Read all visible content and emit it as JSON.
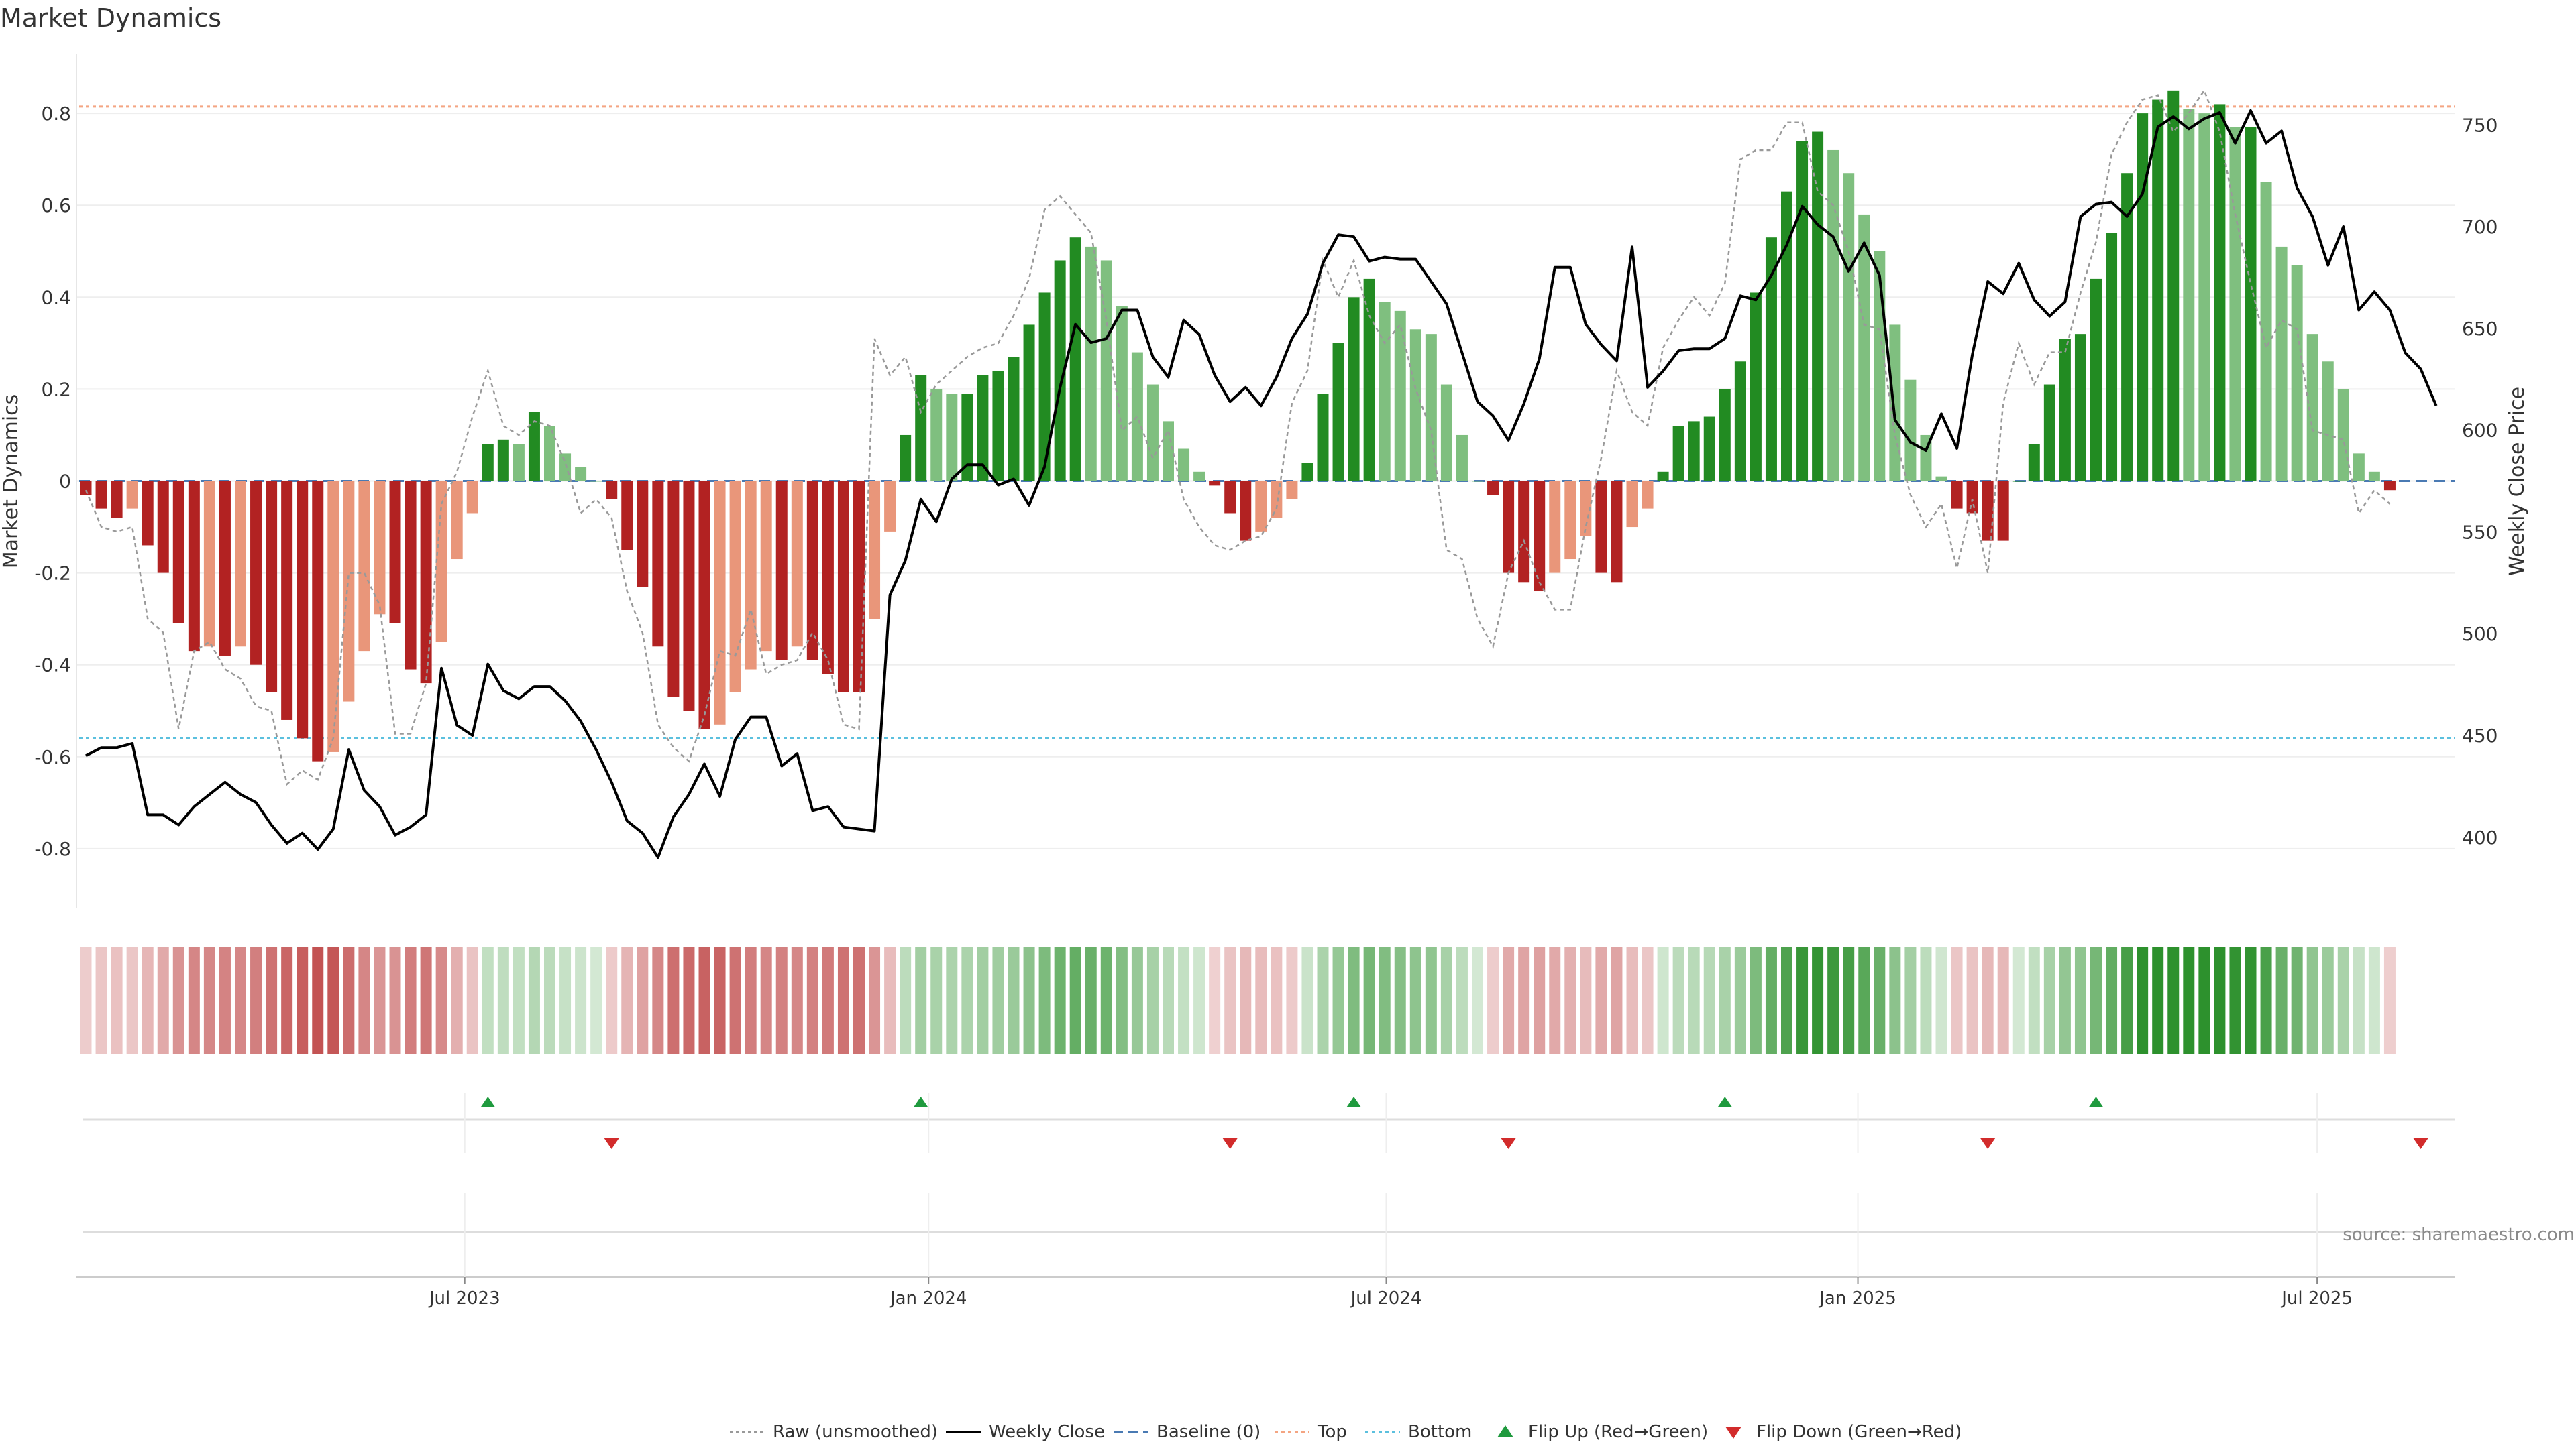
{
  "chart_data": {
    "type": "bar",
    "title": "Market Dynamics",
    "ylabel_left": "Market Dynamics",
    "ylabel_right": "Weekly Close Price",
    "ylim_left": [
      -0.93,
      0.93
    ],
    "ylim_right": [
      365,
      785
    ],
    "yticks_left": [
      "0.8",
      "0.6",
      "0.4",
      "0.2",
      "0",
      "-0.2",
      "-0.4",
      "-0.6",
      "-0.8"
    ],
    "yticks_left_values": [
      0.8,
      0.6,
      0.4,
      0.2,
      0,
      -0.2,
      -0.4,
      -0.6,
      -0.8
    ],
    "yticks_right": [
      "750",
      "700",
      "650",
      "600",
      "550",
      "500",
      "450",
      "400"
    ],
    "yticks_right_values": [
      750,
      700,
      650,
      600,
      550,
      500,
      450,
      400
    ],
    "xticks": [
      "Jul 2023",
      "Jan 2024",
      "Jul 2024",
      "Jan 2025",
      "Jul 2025"
    ],
    "xticks_index": [
      24.5,
      54.5,
      84.1,
      114.6,
      144.3
    ],
    "top_line": 0.815,
    "bottom_line": -0.56,
    "source": "source: sharemaestro.com",
    "legend": [
      "Raw (unsmoothed)",
      "Weekly Close",
      "Baseline (0)",
      "Top",
      "Bottom",
      "Flip Up (Red→Green)",
      "Flip Down (Green→Red)"
    ],
    "colors": {
      "strong_up": "#228b22",
      "weak_up": "#7fbf7f",
      "strong_down": "#b22222",
      "weak_down": "#e9967a",
      "baseline": "#4a7ab3",
      "top": "#f4a582",
      "bottom": "#5bc0de",
      "raw": "#999999",
      "close": "#000000",
      "flip_up": "#1f9a3e",
      "flip_down": "#d22b2b"
    },
    "series": [
      {
        "name": "Market Dynamics",
        "values": [
          -0.03,
          -0.06,
          -0.08,
          -0.06,
          -0.14,
          -0.2,
          -0.31,
          -0.37,
          -0.36,
          -0.38,
          -0.36,
          -0.4,
          -0.46,
          -0.52,
          -0.56,
          -0.61,
          -0.59,
          -0.48,
          -0.37,
          -0.29,
          -0.31,
          -0.41,
          -0.44,
          -0.35,
          -0.17,
          -0.07,
          0.08,
          0.09,
          0.08,
          0.15,
          0.12,
          0.06,
          0.03,
          0.0,
          -0.04,
          -0.15,
          -0.23,
          -0.36,
          -0.47,
          -0.5,
          -0.54,
          -0.53,
          -0.46,
          -0.41,
          -0.37,
          -0.39,
          -0.36,
          -0.39,
          -0.42,
          -0.46,
          -0.46,
          -0.3,
          -0.11,
          0.1,
          0.23,
          0.2,
          0.19,
          0.19,
          0.23,
          0.24,
          0.27,
          0.34,
          0.41,
          0.48,
          0.53,
          0.51,
          0.48,
          0.38,
          0.28,
          0.21,
          0.13,
          0.07,
          0.02,
          -0.01,
          -0.07,
          -0.13,
          -0.11,
          -0.08,
          -0.04,
          0.04,
          0.19,
          0.3,
          0.4,
          0.44,
          0.39,
          0.37,
          0.33,
          0.32,
          0.21,
          0.1,
          0.0,
          -0.03,
          -0.2,
          -0.22,
          -0.24,
          -0.2,
          -0.17,
          -0.12,
          -0.2,
          -0.22,
          -0.1,
          -0.06,
          0.02,
          0.12,
          0.13,
          0.14,
          0.2,
          0.26,
          0.41,
          0.53,
          0.63,
          0.74,
          0.76,
          0.72,
          0.67,
          0.58,
          0.5,
          0.34,
          0.22,
          0.1,
          0.01,
          -0.06,
          -0.07,
          -0.13,
          -0.13,
          0.0,
          0.08,
          0.21,
          0.31,
          0.32,
          0.44,
          0.54,
          0.67,
          0.8,
          0.83,
          0.85,
          0.81,
          0.8,
          0.82,
          0.77,
          0.77,
          0.65,
          0.51,
          0.47,
          0.32,
          0.26,
          0.2,
          0.06,
          0.02,
          -0.02
        ]
      },
      {
        "name": "Raw (unsmoothed)",
        "values": [
          -0.02,
          -0.1,
          -0.11,
          -0.1,
          -0.3,
          -0.33,
          -0.54,
          -0.37,
          -0.35,
          -0.41,
          -0.43,
          -0.49,
          -0.5,
          -0.66,
          -0.63,
          -0.65,
          -0.56,
          -0.2,
          -0.2,
          -0.27,
          -0.55,
          -0.55,
          -0.44,
          -0.05,
          0.02,
          0.14,
          0.24,
          0.12,
          0.1,
          0.13,
          0.12,
          0.04,
          -0.07,
          -0.04,
          -0.08,
          -0.24,
          -0.33,
          -0.53,
          -0.58,
          -0.61,
          -0.51,
          -0.37,
          -0.38,
          -0.28,
          -0.42,
          -0.4,
          -0.39,
          -0.33,
          -0.39,
          -0.53,
          -0.54,
          0.31,
          0.23,
          0.27,
          0.15,
          0.21,
          0.24,
          0.27,
          0.29,
          0.3,
          0.36,
          0.44,
          0.59,
          0.62,
          0.58,
          0.54,
          0.35,
          0.11,
          0.14,
          0.05,
          0.11,
          -0.04,
          -0.1,
          -0.14,
          -0.15,
          -0.13,
          -0.12,
          -0.06,
          0.17,
          0.24,
          0.48,
          0.4,
          0.48,
          0.36,
          0.3,
          0.34,
          0.2,
          0.11,
          -0.15,
          -0.17,
          -0.3,
          -0.36,
          -0.2,
          -0.13,
          -0.22,
          -0.28,
          -0.28,
          -0.1,
          0.05,
          0.24,
          0.15,
          0.12,
          0.29,
          0.35,
          0.4,
          0.36,
          0.43,
          0.7,
          0.72,
          0.72,
          0.78,
          0.78,
          0.63,
          0.6,
          0.5,
          0.34,
          0.33,
          0.1,
          -0.03,
          -0.1,
          -0.05,
          -0.19,
          -0.04,
          -0.2,
          0.17,
          0.3,
          0.21,
          0.28,
          0.28,
          0.41,
          0.52,
          0.71,
          0.78,
          0.83,
          0.84,
          0.76,
          0.8,
          0.85,
          0.76,
          0.58,
          0.43,
          0.29,
          0.35,
          0.33,
          0.11,
          0.1,
          0.09,
          -0.07,
          -0.02,
          -0.05
        ]
      },
      {
        "name": "Weekly Close",
        "values": [
          440,
          444,
          444,
          446,
          411,
          411,
          406,
          415,
          421,
          427,
          421,
          417,
          406,
          397,
          402,
          394,
          404,
          443,
          423,
          415,
          401,
          405,
          411,
          483,
          455,
          450,
          485,
          472,
          468,
          474,
          474,
          467,
          457,
          443,
          427,
          408,
          402,
          390,
          410,
          421,
          436,
          420,
          448,
          459,
          459,
          435,
          441,
          413,
          415,
          405,
          404,
          403,
          519,
          536,
          566,
          555,
          576,
          583,
          583,
          573,
          576,
          563,
          582,
          621,
          652,
          643,
          645,
          659,
          659,
          636,
          626,
          654,
          647,
          627,
          614,
          621,
          612,
          626,
          645,
          657,
          682,
          696,
          695,
          683,
          685,
          684,
          684,
          673,
          662,
          638,
          614,
          607,
          595,
          613,
          635,
          680,
          680,
          652,
          642,
          634,
          690,
          621,
          629,
          639,
          640,
          640,
          645,
          666,
          664,
          676,
          691,
          710,
          701,
          695,
          678,
          692,
          676,
          605,
          594,
          590,
          608,
          591,
          637,
          673,
          667,
          682,
          664,
          656,
          663,
          705,
          711,
          712,
          705,
          716,
          749,
          754,
          748,
          753,
          756,
          741,
          757,
          741,
          747,
          719,
          705,
          681,
          700,
          659,
          668,
          659,
          638,
          630,
          612
        ]
      }
    ],
    "flip_up_index": [
      26,
      54,
      82,
      106,
      130
    ],
    "flip_down_index": [
      34,
      74,
      92,
      123,
      151
    ]
  }
}
